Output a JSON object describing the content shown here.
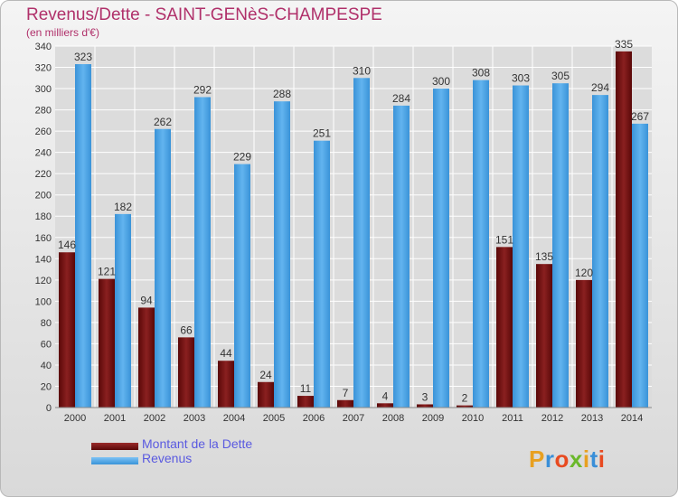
{
  "header": {
    "title": "Revenus/Dette - SAINT-GENèS-CHAMPESPE",
    "subtitle": "(en milliers d'€)"
  },
  "legend": {
    "items": [
      {
        "label": "Montant de la Dette",
        "color": "#7a1010"
      },
      {
        "label": "Revenus",
        "color": "#4aa3e6"
      }
    ]
  },
  "brand": {
    "logo_text": "Proxiti"
  },
  "chart_data": {
    "type": "bar",
    "categories": [
      "2000",
      "2001",
      "2002",
      "2003",
      "2004",
      "2005",
      "2006",
      "2007",
      "2008",
      "2009",
      "2010",
      "2011",
      "2012",
      "2013",
      "2014"
    ],
    "series": [
      {
        "name": "Montant de la Dette",
        "color": "#7a1010",
        "values": [
          146,
          121,
          94,
          66,
          44,
          24,
          11,
          7,
          4,
          3,
          2,
          151,
          135,
          120,
          335
        ]
      },
      {
        "name": "Revenus",
        "color": "#4aa3e6",
        "values": [
          323,
          182,
          262,
          292,
          229,
          288,
          251,
          310,
          284,
          300,
          308,
          303,
          305,
          294,
          267
        ]
      }
    ],
    "ylim": [
      0,
      340
    ],
    "yticks": [
      0,
      20,
      40,
      60,
      80,
      100,
      120,
      140,
      160,
      180,
      200,
      220,
      240,
      260,
      280,
      300,
      320,
      340
    ],
    "grid": true,
    "legend_position": "bottom-left"
  }
}
